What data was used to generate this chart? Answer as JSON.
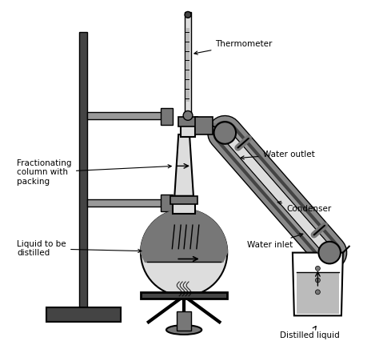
{
  "bg_color": "#ffffff",
  "lc": "#000000",
  "gray_dark": "#444444",
  "gray_med": "#777777",
  "gray_light": "#999999",
  "gray_fill": "#bbbbbb",
  "gray_lighter": "#dddddd",
  "gray_condenser": "#888888",
  "labels": {
    "thermometer": "Thermometer",
    "fractionating": "Fractionating\ncolumn with\npacking",
    "liquid_distilled": "Liquid to be\ndistilled",
    "water_outlet": "Water outlet",
    "condenser": "Condenser",
    "water_inlet": "Water inlet",
    "distilled_liquid": "Distilled liquid"
  }
}
